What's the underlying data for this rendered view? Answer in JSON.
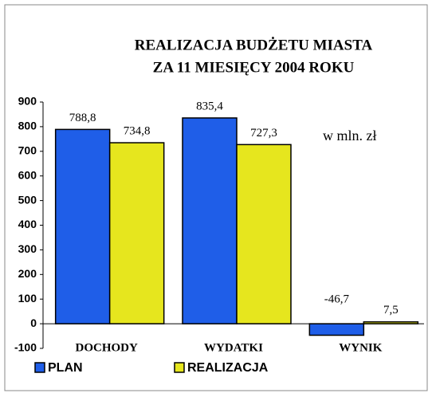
{
  "chart_data": {
    "type": "bar",
    "title_lines": [
      "REALIZACJA BUDŻETU MIASTA",
      "ZA 11 MIESIĘCY 2004 ROKU"
    ],
    "annotation": "w mln. zł",
    "categories": [
      "DOCHODY",
      "WYDATKI",
      "WYNIK"
    ],
    "series": [
      {
        "name": "PLAN",
        "color": "#1f5ee8",
        "values": [
          788.8,
          835.4,
          -46.7
        ],
        "value_labels": [
          "788,8",
          "835,4",
          "-46,7"
        ]
      },
      {
        "name": "REALIZACJA",
        "color": "#e6e61e",
        "values": [
          734.8,
          727.3,
          7.5
        ],
        "value_labels": [
          "734,8",
          "727,3",
          "7,5"
        ]
      }
    ],
    "ylim": [
      -100,
      900
    ],
    "yticks": [
      -100,
      0,
      100,
      200,
      300,
      400,
      500,
      600,
      700,
      800,
      900
    ],
    "legend": "bottom-left"
  }
}
